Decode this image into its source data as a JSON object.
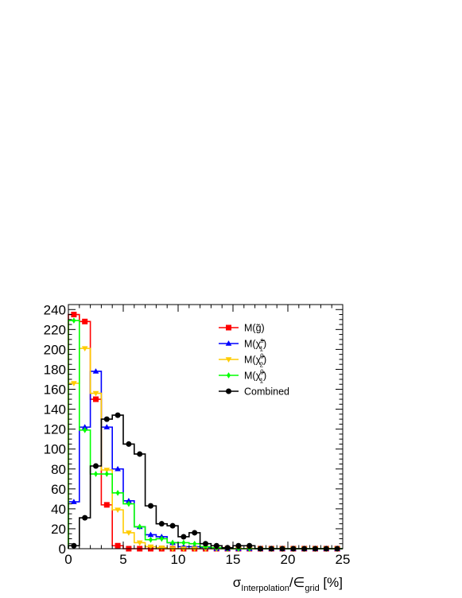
{
  "chart_data": {
    "type": "histogram",
    "xlabel_main": "σ",
    "xlabel_sub": "Interpolation",
    "xlabel_slash": "/∈",
    "xlabel_sub2": "grid",
    "xlabel_unit": " [%]",
    "ylabel": "",
    "xlim": [
      0,
      25
    ],
    "ylim": [
      0,
      245
    ],
    "bin_width": 1,
    "x_ticks": [
      0,
      5,
      10,
      15,
      20,
      25
    ],
    "x_tick_labels": [
      "0",
      "5",
      "10",
      "15",
      "20",
      "25"
    ],
    "y_ticks": [
      0,
      20,
      40,
      60,
      80,
      100,
      120,
      140,
      160,
      180,
      200,
      220,
      240
    ],
    "y_tick_labels": [
      "0",
      "20",
      "40",
      "60",
      "80",
      "100",
      "120",
      "140",
      "160",
      "180",
      "200",
      "220",
      "240"
    ],
    "legend_position": "top-right",
    "grid": false,
    "series": [
      {
        "name": "M(g̃)",
        "base": "M(",
        "sym": "g̃",
        "sup": "",
        "sub": "",
        "color": "#ff0000",
        "marker": "square",
        "values": [
          235,
          228,
          150,
          44,
          3,
          0,
          0,
          0,
          0,
          0,
          0,
          0,
          0,
          0,
          0,
          0,
          0,
          0,
          0,
          0,
          0,
          0,
          0,
          0,
          0
        ]
      },
      {
        "name": "M(χ̃±₁)",
        "base": "M(",
        "sym": "χ̃",
        "sup": "±",
        "sub": "1",
        "color": "#0000ff",
        "marker": "triangle-up",
        "values": [
          47,
          122,
          178,
          122,
          80,
          48,
          22,
          14,
          12,
          6,
          2,
          2,
          1,
          0,
          0,
          0,
          0,
          0,
          0,
          0,
          0,
          0,
          0,
          0,
          0
        ]
      },
      {
        "name": "M(χ̃⁰₂)",
        "base": "M(",
        "sym": "χ̃",
        "sup": "0",
        "sub": "2",
        "color": "#ffcc00",
        "marker": "triangle-down",
        "values": [
          166,
          201,
          156,
          79,
          39,
          16,
          6,
          2,
          1,
          0,
          0,
          0,
          0,
          0,
          0,
          0,
          0,
          0,
          0,
          0,
          0,
          0,
          0,
          0,
          0
        ]
      },
      {
        "name": "M(χ̃⁰₁)",
        "base": "M(",
        "sym": "χ̃",
        "sup": "0",
        "sub": "1",
        "color": "#00ff00",
        "marker": "diamond",
        "values": [
          229,
          119,
          75,
          75,
          56,
          45,
          22,
          9,
          10,
          6,
          6,
          5,
          2,
          1,
          0,
          0,
          0,
          0,
          0,
          0,
          0,
          0,
          0,
          0,
          0
        ]
      },
      {
        "name": "Combined",
        "base": "Combined",
        "sym": "",
        "sup": "",
        "sub": "",
        "color": "#000000",
        "marker": "circle",
        "values": [
          3,
          31,
          83,
          130,
          134,
          105,
          95,
          43,
          25,
          23,
          12,
          16,
          5,
          3,
          1,
          3,
          3,
          0,
          0,
          0,
          0,
          0,
          0,
          0,
          0
        ]
      }
    ]
  }
}
